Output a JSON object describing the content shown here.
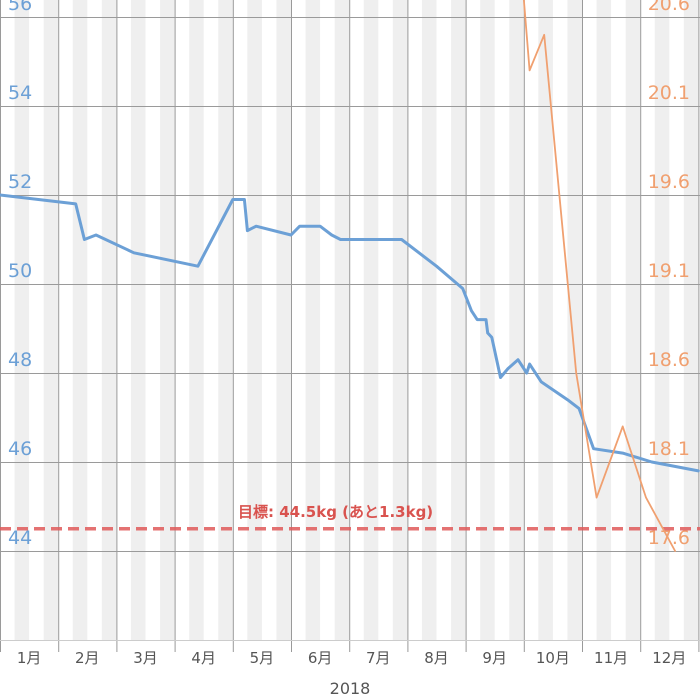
{
  "chart_data": {
    "type": "line",
    "x_label": "2018",
    "x_ticks": [
      "1月",
      "2月",
      "3月",
      "4月",
      "5月",
      "6月",
      "7月",
      "8月",
      "9月",
      "10月",
      "11月",
      "12月"
    ],
    "y_left": {
      "ticks": [
        "56",
        "54",
        "52",
        "50",
        "48",
        "46",
        "44"
      ],
      "range": [
        43,
        56
      ],
      "color": "#6ca0d6"
    },
    "y_right": {
      "ticks": [
        "20.6",
        "20.1",
        "19.6",
        "19.1",
        "18.6",
        "18.1",
        "17.6"
      ],
      "range": [
        17.5,
        20.6
      ],
      "color": "#f0a070"
    },
    "grid": true,
    "goal": {
      "value": 44.5,
      "label": "目標: 44.5kg (あと1.3kg)",
      "color": "#e05a5a"
    },
    "series": [
      {
        "axis": "left",
        "color": "#6ca0d6",
        "points": [
          [
            0.0,
            52.0
          ],
          [
            1.3,
            51.8
          ],
          [
            1.45,
            51.0
          ],
          [
            1.65,
            51.1
          ],
          [
            2.3,
            50.7
          ],
          [
            3.4,
            50.4
          ],
          [
            4.0,
            51.9
          ],
          [
            4.2,
            51.9
          ],
          [
            4.25,
            51.2
          ],
          [
            4.4,
            51.3
          ],
          [
            5.0,
            51.1
          ],
          [
            5.15,
            51.3
          ],
          [
            5.5,
            51.3
          ],
          [
            5.7,
            51.1
          ],
          [
            5.85,
            51.0
          ],
          [
            6.9,
            51.0
          ],
          [
            7.5,
            50.4
          ],
          [
            7.95,
            49.9
          ],
          [
            8.1,
            49.4
          ],
          [
            8.2,
            49.2
          ],
          [
            8.35,
            49.2
          ],
          [
            8.38,
            48.9
          ],
          [
            8.45,
            48.8
          ],
          [
            8.6,
            47.9
          ],
          [
            8.73,
            48.1
          ],
          [
            8.9,
            48.3
          ],
          [
            9.05,
            48.0
          ],
          [
            9.1,
            48.2
          ],
          [
            9.3,
            47.8
          ],
          [
            9.75,
            47.4
          ],
          [
            9.95,
            47.2
          ],
          [
            10.2,
            46.3
          ],
          [
            10.7,
            46.2
          ],
          [
            11.2,
            46.0
          ],
          [
            12.0,
            45.8
          ]
        ]
      },
      {
        "axis": "right",
        "color": "#f0a070",
        "points": [
          [
            9.0,
            20.7
          ],
          [
            9.1,
            20.3
          ],
          [
            9.35,
            20.5
          ],
          [
            9.9,
            18.6
          ],
          [
            10.25,
            17.9
          ],
          [
            10.7,
            18.3
          ],
          [
            11.1,
            17.9
          ],
          [
            11.6,
            17.6
          ]
        ]
      }
    ]
  }
}
